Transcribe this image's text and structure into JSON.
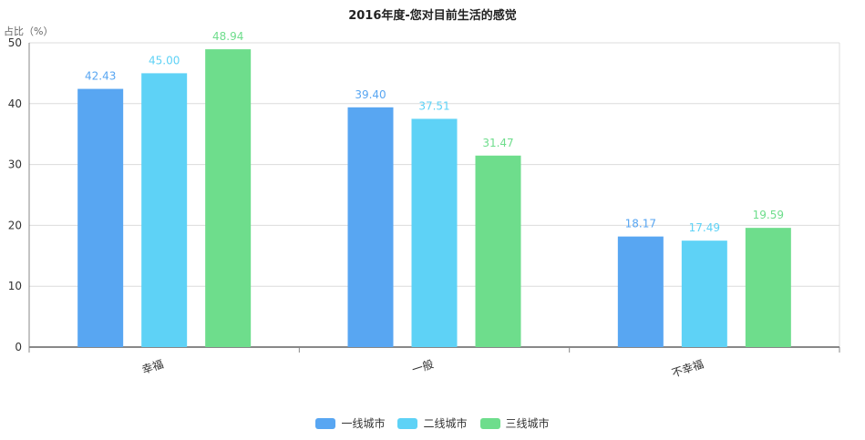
{
  "chart_data": {
    "type": "bar",
    "title": "2016年度-您对目前生活的感觉",
    "ylabel": "占比（%）",
    "xlabel": "",
    "categories": [
      "幸福",
      "一般",
      "不幸福"
    ],
    "ylim": [
      0,
      50
    ],
    "yticks": [
      0,
      10,
      20,
      30,
      40,
      50
    ],
    "grid": true,
    "legend_position": "bottom-center",
    "series": [
      {
        "name": "一线城市",
        "color": "#58a6f2",
        "values": [
          42.43,
          39.4,
          18.17
        ],
        "labels": [
          "42.43",
          "39.40",
          "18.17"
        ]
      },
      {
        "name": "二线城市",
        "color": "#5ed2f6",
        "values": [
          45.0,
          37.51,
          17.49
        ],
        "labels": [
          "45.00",
          "37.51",
          "17.49"
        ]
      },
      {
        "name": "三线城市",
        "color": "#6edd8c",
        "values": [
          48.94,
          31.47,
          19.59
        ],
        "labels": [
          "48.94",
          "31.47",
          "19.59"
        ]
      }
    ]
  }
}
